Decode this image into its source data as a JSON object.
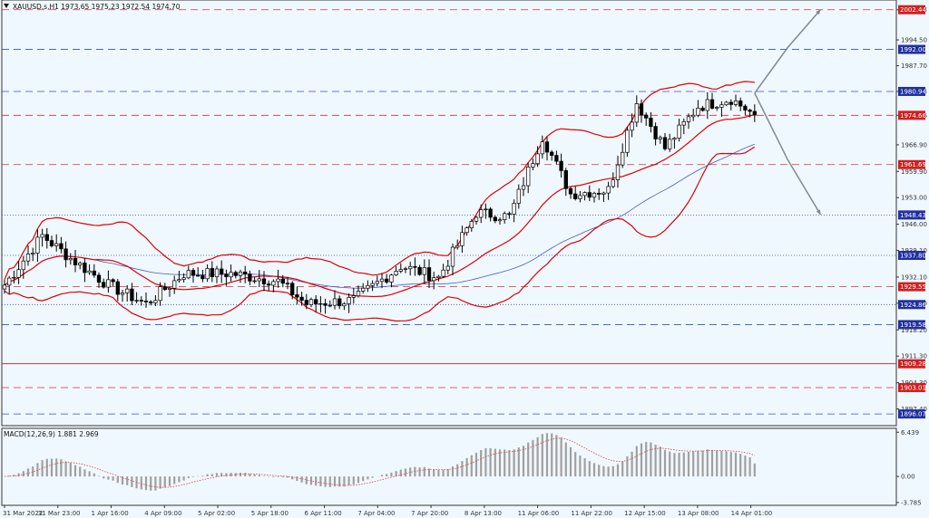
{
  "header": {
    "symbol_line": "XAUUSD.s,H1  1973.65 1975.23 1972.54 1974.70"
  },
  "macd_label": "MACD(12,26,9) 1.881 2.969",
  "colors": {
    "background": "#f0f8ff",
    "candle": "#000000",
    "bollinger": "#e00000",
    "ma": "#4a5ac8",
    "red_level": "#d03030",
    "blue_level": "#3050c0",
    "label_red_bg": "#d02020",
    "label_blue_bg": "#2030a0",
    "macd_hist": "#a0a0a0",
    "macd_signal": "#e04040",
    "arrow": "#808890"
  },
  "chart_data": [
    {
      "type": "candlestick",
      "symbol": "XAUUSD.s",
      "timeframe": "H1",
      "ylim": [
        1893.0,
        2005.0
      ],
      "y_ticks": [
        "2002.44",
        "1994.50",
        "1987.70",
        "1980.94",
        "1974.66",
        "1966.90",
        "1959.90",
        "1953.00",
        "1946.00",
        "1939.10",
        "1932.10",
        "1925.20",
        "1918.20",
        "1911.30",
        "1904.30",
        "1897.40"
      ],
      "x_ticks": [
        "31 Mar 2022",
        "31 Mar 23:00",
        "1 Apr 16:00",
        "4 Apr 09:00",
        "5 Apr 02:00",
        "5 Apr 18:00",
        "6 Apr 11:00",
        "7 Apr 04:00",
        "7 Apr 20:00",
        "8 Apr 13:00",
        "11 Apr 06:00",
        "11 Apr 22:00",
        "12 Apr 15:00",
        "13 Apr 08:00",
        "14 Apr 01:00"
      ],
      "price_anchors": [
        {
          "bar": 0,
          "price": 1930
        },
        {
          "bar": 8,
          "price": 1943
        },
        {
          "bar": 14,
          "price": 1937
        },
        {
          "bar": 22,
          "price": 1930
        },
        {
          "bar": 30,
          "price": 1925
        },
        {
          "bar": 38,
          "price": 1933
        },
        {
          "bar": 48,
          "price": 1933
        },
        {
          "bar": 58,
          "price": 1931
        },
        {
          "bar": 64,
          "price": 1925
        },
        {
          "bar": 74,
          "price": 1926
        },
        {
          "bar": 84,
          "price": 1935
        },
        {
          "bar": 92,
          "price": 1932
        },
        {
          "bar": 100,
          "price": 1949
        },
        {
          "bar": 107,
          "price": 1948
        },
        {
          "bar": 114,
          "price": 1969
        },
        {
          "bar": 120,
          "price": 1954
        },
        {
          "bar": 128,
          "price": 1955
        },
        {
          "bar": 134,
          "price": 1978
        },
        {
          "bar": 140,
          "price": 1966
        },
        {
          "bar": 147,
          "price": 1977
        },
        {
          "bar": 154,
          "price": 1979
        },
        {
          "bar": 159,
          "price": 1974.7
        }
      ],
      "horizontal_levels": [
        {
          "value": 2002.44,
          "label": "2002.44",
          "style": "dashed",
          "color": "red"
        },
        {
          "value": 1992.0,
          "label": "1992.00",
          "style": "dashed",
          "color": "blue"
        },
        {
          "value": 1980.94,
          "label": "1980.94",
          "style": "dashed",
          "color": "blue"
        },
        {
          "value": 1974.66,
          "label": "1974.66",
          "style": "dashed",
          "color": "red"
        },
        {
          "value": 1961.69,
          "label": "1961.69",
          "style": "dashed",
          "color": "red"
        },
        {
          "value": 1948.43,
          "label": "1948.43",
          "style": "dotted",
          "color": "blue"
        },
        {
          "value": 1937.8,
          "label": "1937.80",
          "style": "dotted",
          "color": "blue"
        },
        {
          "value": 1929.55,
          "label": "1929.55",
          "style": "dashed",
          "color": "red"
        },
        {
          "value": 1924.86,
          "label": "1924.86",
          "style": "dotted",
          "color": "blue"
        },
        {
          "value": 1919.58,
          "label": "1919.58",
          "style": "dashed",
          "color": "blue"
        },
        {
          "value": 1909.28,
          "label": "1909.28",
          "style": "solid",
          "color": "red"
        },
        {
          "value": 1903.01,
          "label": "1903.01",
          "style": "dashed",
          "color": "red"
        },
        {
          "value": 1896.07,
          "label": "1896.07",
          "style": "dashed",
          "color": "blue"
        }
      ],
      "projections": [
        {
          "label": "up",
          "points": [
            [
              159,
              1980.5
            ],
            [
              166,
              1992.5
            ],
            [
              173,
              2002.5
            ]
          ]
        },
        {
          "label": "down",
          "points": [
            [
              159,
              1980.5
            ],
            [
              166,
              1963.0
            ],
            [
              173,
              1948.5
            ]
          ]
        }
      ],
      "overlays": [
        "Bollinger Bands (upper, middle, lower)",
        "Moving Average"
      ]
    },
    {
      "type": "macd",
      "label": "MACD(12,26,9) 1.881 2.969",
      "params": [
        12,
        26,
        9
      ],
      "macd": 1.881,
      "signal": 2.969,
      "ylim": [
        -4.2,
        7.0
      ],
      "y_ticks": [
        "6.439",
        "0.00",
        "-3.785"
      ]
    }
  ]
}
